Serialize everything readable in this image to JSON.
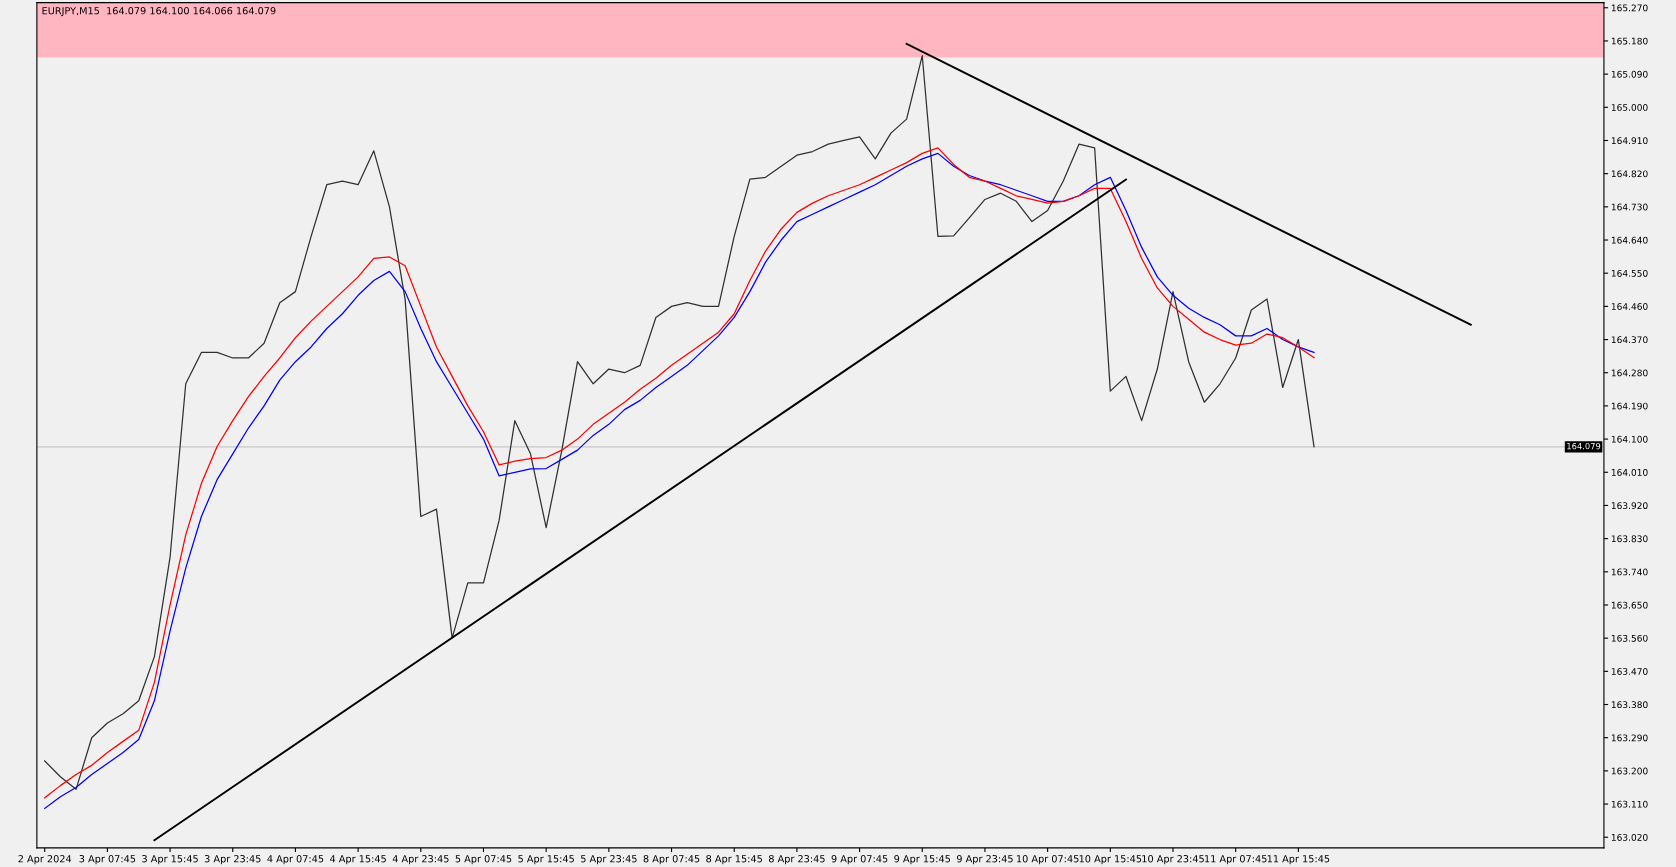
{
  "chart_data": {
    "type": "line",
    "title": "EURJPY,M15  164.079 164.100 164.066 164.079",
    "categories": [
      "2 Apr 2024",
      null,
      null,
      null,
      "3 Apr 07:45",
      null,
      null,
      null,
      "3 Apr 15:45",
      null,
      null,
      null,
      "3 Apr 23:45",
      null,
      null,
      null,
      "4 Apr 07:45",
      null,
      null,
      null,
      "4 Apr 15:45",
      null,
      null,
      null,
      "4 Apr 23:45",
      null,
      null,
      null,
      "5 Apr 07:45",
      null,
      null,
      null,
      "5 Apr 15:45",
      null,
      null,
      null,
      "5 Apr 23:45",
      null,
      null,
      null,
      "8 Apr 07:45",
      null,
      null,
      null,
      "8 Apr 15:45",
      null,
      null,
      null,
      "8 Apr 23:45",
      null,
      null,
      null,
      "9 Apr 07:45",
      null,
      null,
      null,
      "9 Apr 15:45",
      null,
      null,
      null,
      "9 Apr 23:45",
      null,
      null,
      null,
      "10 Apr 07:45",
      null,
      null,
      null,
      "10 Apr 15:45",
      null,
      null,
      null,
      "10 Apr 23:45",
      null,
      null,
      null,
      "11 Apr 07:45",
      null,
      null,
      null,
      "11 Apr 15:45",
      null,
      null,
      null,
      null,
      null,
      null,
      null,
      null,
      null,
      null,
      null,
      null,
      null,
      null,
      null,
      null,
      null,
      null,
      null
    ],
    "ylim": [
      162.991,
      165.284
    ],
    "yticks": [
      {
        "value": 163.02,
        "label": "163.020"
      },
      {
        "value": 163.11,
        "label": "163.110"
      },
      {
        "value": 163.2,
        "label": "163.200"
      },
      {
        "value": 163.29,
        "label": "163.290"
      },
      {
        "value": 163.38,
        "label": "163.380"
      },
      {
        "value": 163.47,
        "label": "163.470"
      },
      {
        "value": 163.56,
        "label": "163.560"
      },
      {
        "value": 163.65,
        "label": "163.650"
      },
      {
        "value": 163.74,
        "label": "163.740"
      },
      {
        "value": 163.83,
        "label": "163.830"
      },
      {
        "value": 163.92,
        "label": "163.920"
      },
      {
        "value": 164.01,
        "label": "164.010"
      },
      {
        "value": 164.1,
        "label": "164.100"
      },
      {
        "value": 164.19,
        "label": "164.190"
      },
      {
        "value": 164.28,
        "label": "164.280"
      },
      {
        "value": 164.37,
        "label": "164.370"
      },
      {
        "value": 164.46,
        "label": "164.460"
      },
      {
        "value": 164.55,
        "label": "164.550"
      },
      {
        "value": 164.64,
        "label": "164.640"
      },
      {
        "value": 164.73,
        "label": "164.730"
      },
      {
        "value": 164.82,
        "label": "164.820"
      },
      {
        "value": 164.91,
        "label": "164.910"
      },
      {
        "value": 165.0,
        "label": "165.000"
      },
      {
        "value": 165.09,
        "label": "165.090"
      },
      {
        "value": 165.18,
        "label": "165.180"
      },
      {
        "value": 165.27,
        "label": "165.270"
      }
    ],
    "grid": false,
    "legend": false,
    "marker": "none",
    "line_style": "solid",
    "series": [
      {
        "color": "#303030",
        "values": [
          163.227,
          163.184,
          163.15,
          163.29,
          163.33,
          163.355,
          163.39,
          163.51,
          163.78,
          164.25,
          164.335,
          164.335,
          164.32,
          164.32,
          164.36,
          164.47,
          164.5,
          164.65,
          164.79,
          164.8,
          164.79,
          164.882,
          164.73,
          164.479,
          163.89,
          163.91,
          163.56,
          163.71,
          163.71,
          163.88,
          164.15,
          164.06,
          163.86,
          164.07,
          164.31,
          164.25,
          164.29,
          164.28,
          164.3,
          164.43,
          164.46,
          164.47,
          164.46,
          164.46,
          164.65,
          164.805,
          164.81,
          164.84,
          164.87,
          164.88,
          164.9,
          164.91,
          164.92,
          164.86,
          164.93,
          164.968,
          165.14,
          164.65,
          164.651,
          164.7,
          164.75,
          164.767,
          164.745,
          164.69,
          164.72,
          164.8,
          164.9,
          164.89,
          164.23,
          164.27,
          164.15,
          164.29,
          164.5,
          164.31,
          164.2,
          164.25,
          164.32,
          164.45,
          164.48,
          164.24,
          164.37,
          164.079,
          null,
          null,
          null,
          null,
          null,
          null,
          null,
          null,
          null,
          null,
          null,
          null,
          null,
          null,
          null,
          null,
          null,
          null
        ]
      },
      {
        "color": "#0000ff",
        "values": [
          163.098,
          163.13,
          163.155,
          163.19,
          163.22,
          163.25,
          163.285,
          163.39,
          163.58,
          163.75,
          163.89,
          163.99,
          164.06,
          164.13,
          164.19,
          164.26,
          164.31,
          164.35,
          164.4,
          164.44,
          164.49,
          164.53,
          164.555,
          164.5,
          164.4,
          164.31,
          164.24,
          164.17,
          164.1,
          164.0,
          164.01,
          164.019,
          164.02,
          164.045,
          164.07,
          164.11,
          164.14,
          164.18,
          164.205,
          164.24,
          164.27,
          164.3,
          164.34,
          164.38,
          164.43,
          164.5,
          164.58,
          164.64,
          164.69,
          164.71,
          164.73,
          164.75,
          164.77,
          164.79,
          164.815,
          164.84,
          164.86,
          164.875,
          164.84,
          164.815,
          164.8,
          164.79,
          164.775,
          164.76,
          164.745,
          164.745,
          164.76,
          164.79,
          164.81,
          164.72,
          164.62,
          164.54,
          164.49,
          164.455,
          164.43,
          164.41,
          164.38,
          164.38,
          164.4,
          164.37,
          164.35,
          164.335,
          null,
          null,
          null,
          null,
          null,
          null,
          null,
          null,
          null,
          null,
          null,
          null,
          null,
          null,
          null,
          null,
          null,
          null
        ]
      },
      {
        "color": "#ff0000",
        "values": [
          163.127,
          163.16,
          163.19,
          163.215,
          163.25,
          163.28,
          163.31,
          163.44,
          163.65,
          163.84,
          163.98,
          164.08,
          164.15,
          164.215,
          164.27,
          164.32,
          164.375,
          164.42,
          164.46,
          164.5,
          164.54,
          164.59,
          164.594,
          164.57,
          164.46,
          164.35,
          164.27,
          164.19,
          164.12,
          164.03,
          164.04,
          164.047,
          164.05,
          164.07,
          164.1,
          164.14,
          164.17,
          164.2,
          164.235,
          164.265,
          164.3,
          164.33,
          164.36,
          164.39,
          164.44,
          164.53,
          164.61,
          164.67,
          164.715,
          164.74,
          164.76,
          164.775,
          164.79,
          164.81,
          164.83,
          164.85,
          164.875,
          164.89,
          164.845,
          164.81,
          164.8,
          164.78,
          164.76,
          164.75,
          164.74,
          164.745,
          164.76,
          164.78,
          164.78,
          164.69,
          164.59,
          164.51,
          164.46,
          164.425,
          164.39,
          164.37,
          164.355,
          164.36,
          164.385,
          164.375,
          164.35,
          164.321,
          null,
          null,
          null,
          null,
          null,
          null,
          null,
          null,
          null,
          null,
          null,
          null,
          null,
          null,
          null,
          null,
          null,
          null
        ]
      },
      {
        "color": "#000000",
        "values": [
          null,
          null,
          null,
          null,
          null,
          null,
          null,
          163.012,
          null,
          null,
          null,
          null,
          null,
          null,
          null,
          null,
          null,
          null,
          null,
          null,
          null,
          null,
          null,
          null,
          null,
          null,
          null,
          null,
          null,
          null,
          null,
          null,
          null,
          null,
          null,
          null,
          null,
          null,
          null,
          null,
          null,
          null,
          null,
          null,
          null,
          null,
          null,
          null,
          null,
          null,
          null,
          null,
          null,
          null,
          null,
          null,
          null,
          null,
          null,
          null,
          null,
          null,
          null,
          null,
          null,
          null,
          null,
          null,
          null,
          164.804,
          null,
          null,
          null,
          null,
          null,
          null,
          null,
          null,
          null,
          null,
          null,
          null,
          null,
          null,
          null,
          null,
          null,
          null,
          null,
          null,
          null,
          null,
          null,
          null,
          null,
          null,
          null,
          null,
          null,
          null
        ]
      },
      {
        "color": "#000000",
        "values": [
          null,
          null,
          null,
          null,
          null,
          null,
          null,
          null,
          null,
          null,
          null,
          null,
          null,
          null,
          null,
          null,
          null,
          null,
          null,
          null,
          null,
          null,
          null,
          null,
          null,
          null,
          null,
          null,
          null,
          null,
          null,
          null,
          null,
          null,
          null,
          null,
          null,
          null,
          null,
          null,
          null,
          null,
          null,
          null,
          null,
          null,
          null,
          null,
          null,
          null,
          null,
          null,
          null,
          null,
          null,
          165.172,
          null,
          null,
          null,
          null,
          null,
          null,
          null,
          null,
          null,
          null,
          null,
          null,
          null,
          null,
          null,
          null,
          null,
          null,
          null,
          null,
          null,
          null,
          null,
          null,
          null,
          null,
          null,
          null,
          null,
          null,
          null,
          null,
          null,
          null,
          null,
          164.41,
          null,
          null,
          null,
          null,
          null,
          null,
          null,
          null
        ]
      }
    ],
    "bands": [
      {
        "axis": "y",
        "from": 165.135,
        "to": 165.284,
        "color": "#ffb6c1"
      }
    ],
    "ref_lines": [
      {
        "axis": "y",
        "value": 164.079,
        "label": "164.079",
        "color": "#c8c8c8",
        "line_style": "solid"
      }
    ]
  }
}
